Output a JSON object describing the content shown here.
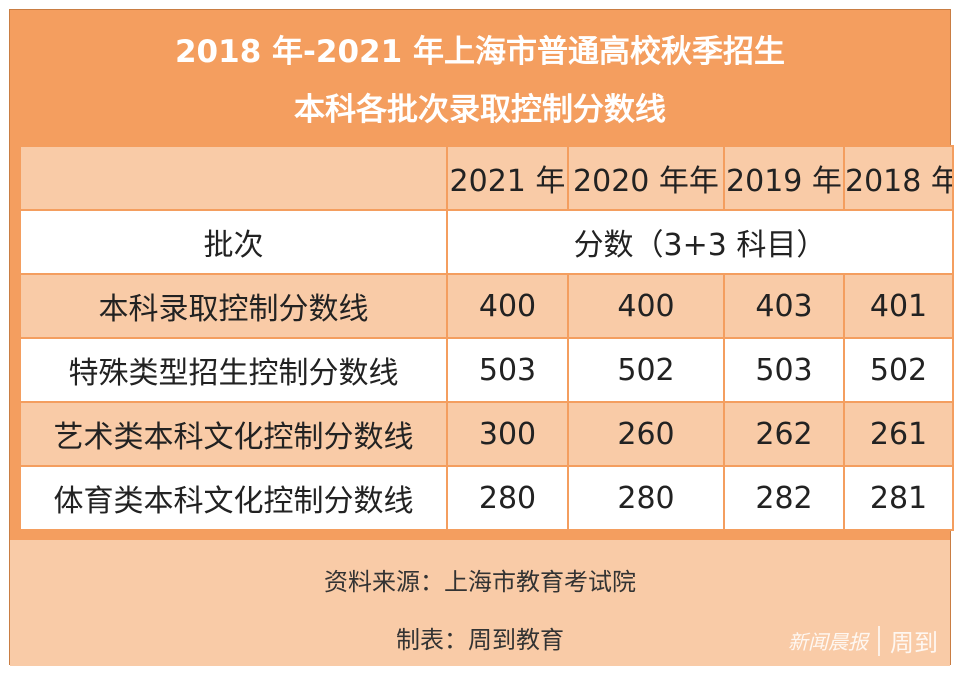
{
  "title": {
    "line1": "2018 年-2021 年上海市普通高校秋季招生",
    "line2": "本科各批次录取控制分数线"
  },
  "header": {
    "years": [
      "2021 年",
      "2020 年年",
      "2019 年",
      "2018 年"
    ],
    "batch_label": "批次",
    "score_label": "分数（3+3 科目）"
  },
  "rows": [
    {
      "name": "本科录取控制分数线",
      "values": [
        "400",
        "400",
        "403",
        "401"
      ]
    },
    {
      "name": "特殊类型招生控制分数线",
      "values": [
        "503",
        "502",
        "503",
        "502"
      ]
    },
    {
      "name": "艺术类本科文化控制分数线",
      "values": [
        "300",
        "260",
        "262",
        "261"
      ]
    },
    {
      "name": "体育类本科文化控制分数线",
      "values": [
        "280",
        "280",
        "282",
        "281"
      ]
    }
  ],
  "footer": {
    "source": "资料来源：上海市教育考试院",
    "maker": "制表：周到教育"
  },
  "watermark": {
    "brand1": "新闻晨报",
    "brand2": "周到"
  },
  "colors": {
    "frame": "#f49e5f",
    "peach": "#f9cba7",
    "white": "#ffffff"
  }
}
